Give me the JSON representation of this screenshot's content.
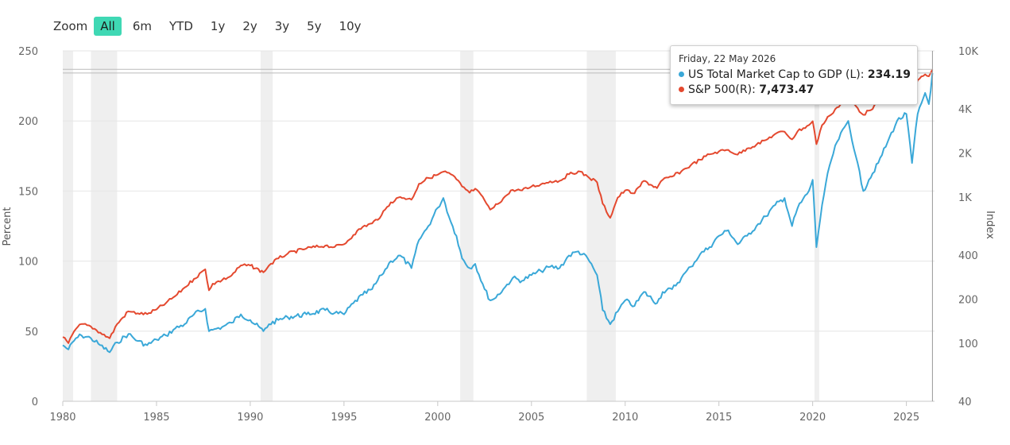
{
  "zoom": {
    "label": "Zoom",
    "buttons": [
      "All",
      "6m",
      "YTD",
      "1y",
      "2y",
      "3y",
      "5y",
      "10y"
    ],
    "active": "All"
  },
  "tooltip": {
    "date": "Friday, 22 May 2026",
    "rows": [
      {
        "name": "US Total Market Cap to GDP (L)",
        "value": "234.19",
        "color": "#3aa8d8"
      },
      {
        "name": "S&P 500(R)",
        "value": "7,473.47",
        "color": "#e4492f"
      }
    ]
  },
  "chart_data": {
    "type": "line",
    "xlabel": "",
    "ylabel_left": "Percent",
    "ylabel_right": "Index",
    "x_ticks": [
      "1980",
      "1985",
      "1990",
      "1995",
      "2000",
      "2005",
      "2010",
      "2015",
      "2020",
      "2025"
    ],
    "x_range": [
      1980,
      2026.5
    ],
    "y_left": {
      "ticks": [
        0,
        50,
        100,
        150,
        200,
        250
      ],
      "range": [
        0,
        250
      ]
    },
    "y_right": {
      "scale": "log",
      "ticks": [
        40,
        100,
        200,
        400,
        "1K",
        "2K",
        "4K",
        "10K"
      ],
      "tick_values": [
        40,
        100,
        200,
        400,
        1000,
        2000,
        4000,
        10000
      ],
      "range": [
        40,
        10000
      ]
    },
    "recession_shading": [
      [
        1980.0,
        1980.55
      ],
      [
        1981.5,
        1982.9
      ],
      [
        1990.55,
        1991.2
      ],
      [
        2001.2,
        2001.9
      ],
      [
        2007.95,
        2009.5
      ],
      [
        2020.1,
        2020.35
      ]
    ],
    "series": [
      {
        "name": "US Total Market Cap to GDP (L)",
        "axis": "left",
        "color": "#3aa8d8",
        "points": [
          [
            1980.0,
            40
          ],
          [
            1980.3,
            37
          ],
          [
            1980.7,
            45
          ],
          [
            1981.0,
            47
          ],
          [
            1981.5,
            45
          ],
          [
            1982.0,
            40
          ],
          [
            1982.5,
            35
          ],
          [
            1982.9,
            42
          ],
          [
            1983.5,
            48
          ],
          [
            1984.0,
            43
          ],
          [
            1984.5,
            40
          ],
          [
            1985.0,
            44
          ],
          [
            1985.5,
            47
          ],
          [
            1986.0,
            52
          ],
          [
            1986.5,
            55
          ],
          [
            1987.0,
            62
          ],
          [
            1987.6,
            66
          ],
          [
            1987.8,
            50
          ],
          [
            1988.0,
            51
          ],
          [
            1988.5,
            53
          ],
          [
            1989.0,
            56
          ],
          [
            1989.5,
            62
          ],
          [
            1990.0,
            58
          ],
          [
            1990.7,
            50
          ],
          [
            1991.0,
            55
          ],
          [
            1991.5,
            58
          ],
          [
            1992.0,
            60
          ],
          [
            1993.0,
            62
          ],
          [
            1994.0,
            65
          ],
          [
            1994.5,
            63
          ],
          [
            1995.0,
            62
          ],
          [
            1995.5,
            70
          ],
          [
            1996.0,
            76
          ],
          [
            1996.5,
            80
          ],
          [
            1997.0,
            90
          ],
          [
            1997.5,
            100
          ],
          [
            1998.0,
            104
          ],
          [
            1998.6,
            95
          ],
          [
            1999.0,
            115
          ],
          [
            1999.5,
            125
          ],
          [
            2000.0,
            138
          ],
          [
            2000.3,
            145
          ],
          [
            2000.7,
            128
          ],
          [
            2001.0,
            118
          ],
          [
            2001.3,
            102
          ],
          [
            2001.7,
            95
          ],
          [
            2002.0,
            98
          ],
          [
            2002.5,
            80
          ],
          [
            2002.8,
            72
          ],
          [
            2003.0,
            73
          ],
          [
            2003.5,
            80
          ],
          [
            2004.0,
            88
          ],
          [
            2004.5,
            86
          ],
          [
            2005.0,
            90
          ],
          [
            2005.5,
            93
          ],
          [
            2006.0,
            96
          ],
          [
            2006.5,
            95
          ],
          [
            2007.0,
            104
          ],
          [
            2007.5,
            107
          ],
          [
            2008.0,
            102
          ],
          [
            2008.5,
            90
          ],
          [
            2008.8,
            65
          ],
          [
            2009.2,
            55
          ],
          [
            2009.6,
            64
          ],
          [
            2010.0,
            72
          ],
          [
            2010.5,
            68
          ],
          [
            2011.0,
            78
          ],
          [
            2011.7,
            70
          ],
          [
            2012.0,
            78
          ],
          [
            2012.5,
            80
          ],
          [
            2013.0,
            88
          ],
          [
            2013.5,
            96
          ],
          [
            2014.0,
            105
          ],
          [
            2014.5,
            110
          ],
          [
            2015.0,
            118
          ],
          [
            2015.5,
            122
          ],
          [
            2016.0,
            112
          ],
          [
            2016.5,
            118
          ],
          [
            2017.0,
            125
          ],
          [
            2017.5,
            132
          ],
          [
            2018.0,
            140
          ],
          [
            2018.5,
            145
          ],
          [
            2018.9,
            125
          ],
          [
            2019.2,
            138
          ],
          [
            2019.8,
            150
          ],
          [
            2020.0,
            158
          ],
          [
            2020.2,
            110
          ],
          [
            2020.5,
            140
          ],
          [
            2020.9,
            168
          ],
          [
            2021.3,
            185
          ],
          [
            2021.9,
            200
          ],
          [
            2022.3,
            175
          ],
          [
            2022.7,
            150
          ],
          [
            2023.0,
            158
          ],
          [
            2023.5,
            170
          ],
          [
            2024.0,
            185
          ],
          [
            2024.5,
            200
          ],
          [
            2025.0,
            205
          ],
          [
            2025.3,
            170
          ],
          [
            2025.6,
            205
          ],
          [
            2026.0,
            220
          ],
          [
            2026.2,
            212
          ],
          [
            2026.39,
            234.19
          ]
        ]
      },
      {
        "name": "S&P 500(R)",
        "axis": "right",
        "color": "#e4492f",
        "points": [
          [
            1980.0,
            110
          ],
          [
            1980.3,
            100
          ],
          [
            1980.7,
            125
          ],
          [
            1981.0,
            135
          ],
          [
            1981.5,
            130
          ],
          [
            1982.0,
            118
          ],
          [
            1982.5,
            108
          ],
          [
            1982.9,
            135
          ],
          [
            1983.5,
            165
          ],
          [
            1984.0,
            160
          ],
          [
            1984.5,
            158
          ],
          [
            1985.0,
            170
          ],
          [
            1985.5,
            188
          ],
          [
            1986.0,
            210
          ],
          [
            1986.5,
            240
          ],
          [
            1987.0,
            275
          ],
          [
            1987.6,
            320
          ],
          [
            1987.8,
            230
          ],
          [
            1988.0,
            255
          ],
          [
            1988.5,
            270
          ],
          [
            1989.0,
            290
          ],
          [
            1989.5,
            340
          ],
          [
            1990.0,
            340
          ],
          [
            1990.7,
            305
          ],
          [
            1991.0,
            340
          ],
          [
            1991.5,
            380
          ],
          [
            1992.0,
            410
          ],
          [
            1993.0,
            445
          ],
          [
            1994.0,
            465
          ],
          [
            1994.5,
            455
          ],
          [
            1995.0,
            475
          ],
          [
            1995.5,
            550
          ],
          [
            1996.0,
            625
          ],
          [
            1996.5,
            660
          ],
          [
            1997.0,
            750
          ],
          [
            1997.5,
            920
          ],
          [
            1998.0,
            1000
          ],
          [
            1998.6,
            960
          ],
          [
            1999.0,
            1230
          ],
          [
            1999.5,
            1350
          ],
          [
            2000.0,
            1420
          ],
          [
            2000.3,
            1490
          ],
          [
            2000.7,
            1430
          ],
          [
            2001.0,
            1320
          ],
          [
            2001.3,
            1180
          ],
          [
            2001.7,
            1070
          ],
          [
            2002.0,
            1140
          ],
          [
            2002.5,
            950
          ],
          [
            2002.8,
            820
          ],
          [
            2003.0,
            850
          ],
          [
            2003.5,
            980
          ],
          [
            2004.0,
            1120
          ],
          [
            2004.5,
            1110
          ],
          [
            2005.0,
            1180
          ],
          [
            2005.5,
            1220
          ],
          [
            2006.0,
            1280
          ],
          [
            2006.5,
            1290
          ],
          [
            2007.0,
            1430
          ],
          [
            2007.5,
            1500
          ],
          [
            2008.0,
            1380
          ],
          [
            2008.5,
            1260
          ],
          [
            2008.8,
            900
          ],
          [
            2009.2,
            720
          ],
          [
            2009.6,
            990
          ],
          [
            2010.0,
            1110
          ],
          [
            2010.5,
            1060
          ],
          [
            2011.0,
            1290
          ],
          [
            2011.7,
            1150
          ],
          [
            2012.0,
            1310
          ],
          [
            2012.5,
            1380
          ],
          [
            2013.0,
            1500
          ],
          [
            2013.5,
            1650
          ],
          [
            2014.0,
            1800
          ],
          [
            2014.5,
            1960
          ],
          [
            2015.0,
            2050
          ],
          [
            2015.5,
            2100
          ],
          [
            2016.0,
            1950
          ],
          [
            2016.5,
            2150
          ],
          [
            2017.0,
            2280
          ],
          [
            2017.5,
            2450
          ],
          [
            2018.0,
            2700
          ],
          [
            2018.5,
            2800
          ],
          [
            2018.9,
            2480
          ],
          [
            2019.2,
            2820
          ],
          [
            2019.8,
            3100
          ],
          [
            2020.0,
            3300
          ],
          [
            2020.2,
            2300
          ],
          [
            2020.5,
            3100
          ],
          [
            2020.9,
            3600
          ],
          [
            2021.3,
            4100
          ],
          [
            2021.9,
            4750
          ],
          [
            2022.3,
            4200
          ],
          [
            2022.7,
            3650
          ],
          [
            2023.0,
            3900
          ],
          [
            2023.5,
            4400
          ],
          [
            2024.0,
            4800
          ],
          [
            2024.5,
            5400
          ],
          [
            2025.0,
            6000
          ],
          [
            2025.3,
            5100
          ],
          [
            2025.6,
            6300
          ],
          [
            2026.0,
            6900
          ],
          [
            2026.2,
            6700
          ],
          [
            2026.39,
            7473.47
          ]
        ]
      }
    ]
  }
}
